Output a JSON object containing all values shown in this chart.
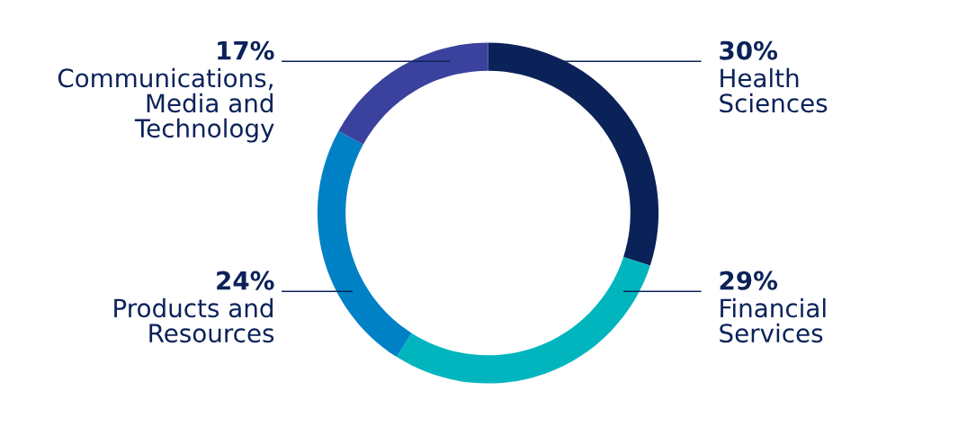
{
  "chart_data": {
    "type": "donut",
    "categories": [
      "Health\nSciences",
      "Financial\nServices",
      "Products and\nResources",
      "Communications,\nMedia and\nTechnology"
    ],
    "values": [
      30,
      29,
      24,
      17
    ],
    "value_labels": [
      "30%",
      "29%",
      "24%",
      "17%"
    ],
    "colors": [
      "#0b2259",
      "#00b5be",
      "#0081c6",
      "#3a429d"
    ],
    "legend": false
  }
}
